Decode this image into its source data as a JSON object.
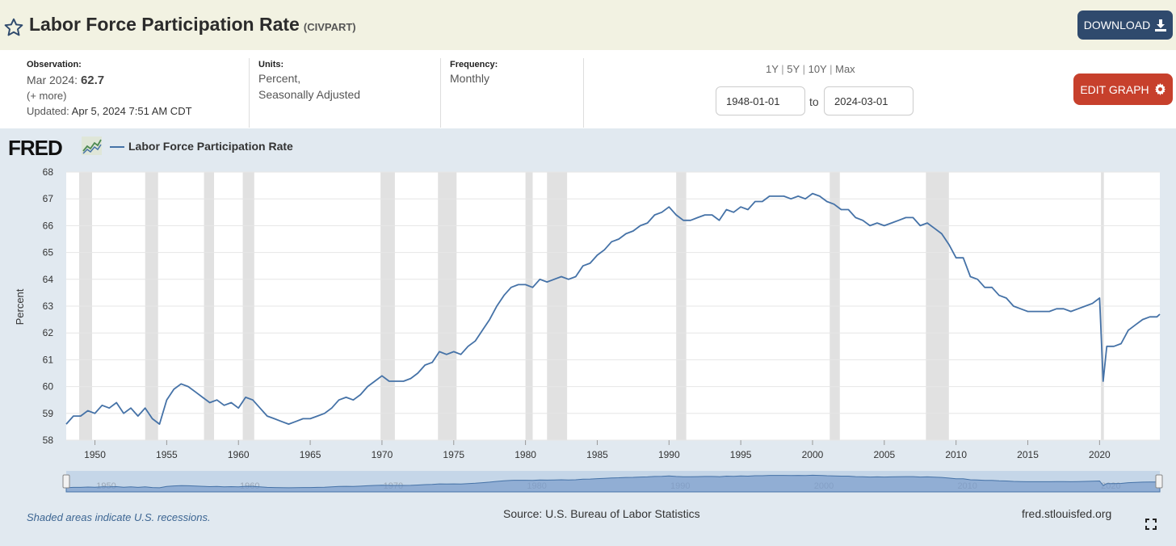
{
  "header": {
    "title": "Labor Force Participation Rate",
    "series_id": "(CIVPART)",
    "download_label": "DOWNLOAD"
  },
  "meta": {
    "observation_label": "Observation:",
    "observation_date": "Mar 2024:",
    "observation_value": "62.7",
    "more_link": "(+ more)",
    "updated_label": "Updated:",
    "updated_value": "Apr 5, 2024 7:51 AM CDT",
    "units_label": "Units:",
    "units_line1": "Percent,",
    "units_line2": "Seasonally Adjusted",
    "frequency_label": "Frequency:",
    "frequency_value": "Monthly",
    "range_1y": "1Y",
    "range_5y": "5Y",
    "range_10y": "10Y",
    "range_max": "Max",
    "start_date": "1948-01-01",
    "end_date": "2024-03-01",
    "to_label": "to",
    "edit_graph_label": "EDIT GRAPH"
  },
  "chart_header": {
    "logo": "FRED",
    "legend_label": "Labor Force Participation Rate"
  },
  "footer": {
    "recession_note": "Shaded areas indicate U.S. recessions.",
    "source": "Source: U.S. Bureau of Labor Statistics",
    "site": "fred.stlouisfed.org"
  },
  "colors": {
    "line": "#4572a7",
    "recession": "#e1e1e1",
    "header_bg": "#f2f2e2",
    "download_bg": "#2f4a6d",
    "edit_bg": "#c7402c",
    "chart_bg": "#e1e9f0"
  },
  "chart_data": {
    "type": "line",
    "ylabel": "Percent",
    "ylim": [
      58,
      68
    ],
    "xlim": [
      1948.0,
      2024.2
    ],
    "yticks": [
      58,
      59,
      60,
      61,
      62,
      63,
      64,
      65,
      66,
      67,
      68
    ],
    "xticks": [
      1950,
      1955,
      1960,
      1965,
      1970,
      1975,
      1980,
      1985,
      1990,
      1995,
      2000,
      2005,
      2010,
      2015,
      2020
    ],
    "navigator_labels": [
      1950,
      1960,
      1970,
      1980,
      1990,
      2000,
      2010,
      2020
    ],
    "grid": true,
    "recessions": [
      [
        1948.9,
        1949.8
      ],
      [
        1953.5,
        1954.4
      ],
      [
        1957.6,
        1958.3
      ],
      [
        1960.3,
        1961.1
      ],
      [
        1969.9,
        1970.9
      ],
      [
        1973.9,
        1975.2
      ],
      [
        1980.0,
        1980.5
      ],
      [
        1981.5,
        1982.9
      ],
      [
        1990.5,
        1991.2
      ],
      [
        2001.2,
        2001.9
      ],
      [
        2007.9,
        2009.5
      ],
      [
        2020.1,
        2020.3
      ]
    ],
    "series": [
      {
        "name": "Labor Force Participation Rate",
        "x": [
          1948.0,
          1948.5,
          1949.0,
          1949.5,
          1950.0,
          1950.5,
          1951.0,
          1951.5,
          1952.0,
          1952.5,
          1953.0,
          1953.5,
          1954.0,
          1954.5,
          1955.0,
          1955.5,
          1956.0,
          1956.5,
          1957.0,
          1957.5,
          1958.0,
          1958.5,
          1959.0,
          1959.5,
          1960.0,
          1960.5,
          1961.0,
          1961.5,
          1962.0,
          1962.5,
          1963.0,
          1963.5,
          1964.0,
          1964.5,
          1965.0,
          1965.5,
          1966.0,
          1966.5,
          1967.0,
          1967.5,
          1968.0,
          1968.5,
          1969.0,
          1969.5,
          1970.0,
          1970.5,
          1971.0,
          1971.5,
          1972.0,
          1972.5,
          1973.0,
          1973.5,
          1974.0,
          1974.5,
          1975.0,
          1975.5,
          1976.0,
          1976.5,
          1977.0,
          1977.5,
          1978.0,
          1978.5,
          1979.0,
          1979.5,
          1980.0,
          1980.5,
          1981.0,
          1981.5,
          1982.0,
          1982.5,
          1983.0,
          1983.5,
          1984.0,
          1984.5,
          1985.0,
          1985.5,
          1986.0,
          1986.5,
          1987.0,
          1987.5,
          1988.0,
          1988.5,
          1989.0,
          1989.5,
          1990.0,
          1990.5,
          1991.0,
          1991.5,
          1992.0,
          1992.5,
          1993.0,
          1993.5,
          1994.0,
          1994.5,
          1995.0,
          1995.5,
          1996.0,
          1996.5,
          1997.0,
          1997.5,
          1998.0,
          1998.5,
          1999.0,
          1999.5,
          2000.0,
          2000.5,
          2001.0,
          2001.5,
          2002.0,
          2002.5,
          2003.0,
          2003.5,
          2004.0,
          2004.5,
          2005.0,
          2005.5,
          2006.0,
          2006.5,
          2007.0,
          2007.5,
          2008.0,
          2008.5,
          2009.0,
          2009.5,
          2010.0,
          2010.5,
          2011.0,
          2011.5,
          2012.0,
          2012.5,
          2013.0,
          2013.5,
          2014.0,
          2014.5,
          2015.0,
          2015.5,
          2016.0,
          2016.5,
          2017.0,
          2017.5,
          2018.0,
          2018.5,
          2019.0,
          2019.5,
          2020.0,
          2020.25,
          2020.5,
          2021.0,
          2021.5,
          2022.0,
          2022.5,
          2023.0,
          2023.5,
          2024.0,
          2024.2
        ],
        "values": [
          58.6,
          58.9,
          58.9,
          59.1,
          59.0,
          59.3,
          59.2,
          59.4,
          59.0,
          59.2,
          58.9,
          59.2,
          58.8,
          58.6,
          59.5,
          59.9,
          60.1,
          60.0,
          59.8,
          59.6,
          59.4,
          59.5,
          59.3,
          59.4,
          59.2,
          59.6,
          59.5,
          59.2,
          58.9,
          58.8,
          58.7,
          58.6,
          58.7,
          58.8,
          58.8,
          58.9,
          59.0,
          59.2,
          59.5,
          59.6,
          59.5,
          59.7,
          60.0,
          60.2,
          60.4,
          60.2,
          60.2,
          60.2,
          60.3,
          60.5,
          60.8,
          60.9,
          61.3,
          61.2,
          61.3,
          61.2,
          61.5,
          61.7,
          62.1,
          62.5,
          63.0,
          63.4,
          63.7,
          63.8,
          63.8,
          63.7,
          64.0,
          63.9,
          64.0,
          64.1,
          64.0,
          64.1,
          64.5,
          64.6,
          64.9,
          65.1,
          65.4,
          65.5,
          65.7,
          65.8,
          66.0,
          66.1,
          66.4,
          66.5,
          66.7,
          66.4,
          66.2,
          66.2,
          66.3,
          66.4,
          66.4,
          66.2,
          66.6,
          66.5,
          66.7,
          66.6,
          66.9,
          66.9,
          67.1,
          67.1,
          67.1,
          67.0,
          67.1,
          67.0,
          67.2,
          67.1,
          66.9,
          66.8,
          66.6,
          66.6,
          66.3,
          66.2,
          66.0,
          66.1,
          66.0,
          66.1,
          66.2,
          66.3,
          66.3,
          66.0,
          66.1,
          65.9,
          65.7,
          65.3,
          64.8,
          64.8,
          64.1,
          64.0,
          63.7,
          63.7,
          63.4,
          63.3,
          63.0,
          62.9,
          62.8,
          62.8,
          62.8,
          62.8,
          62.9,
          62.9,
          62.8,
          62.9,
          63.0,
          63.1,
          63.3,
          60.2,
          61.5,
          61.5,
          61.6,
          62.1,
          62.3,
          62.5,
          62.6,
          62.6,
          62.7
        ]
      }
    ]
  }
}
